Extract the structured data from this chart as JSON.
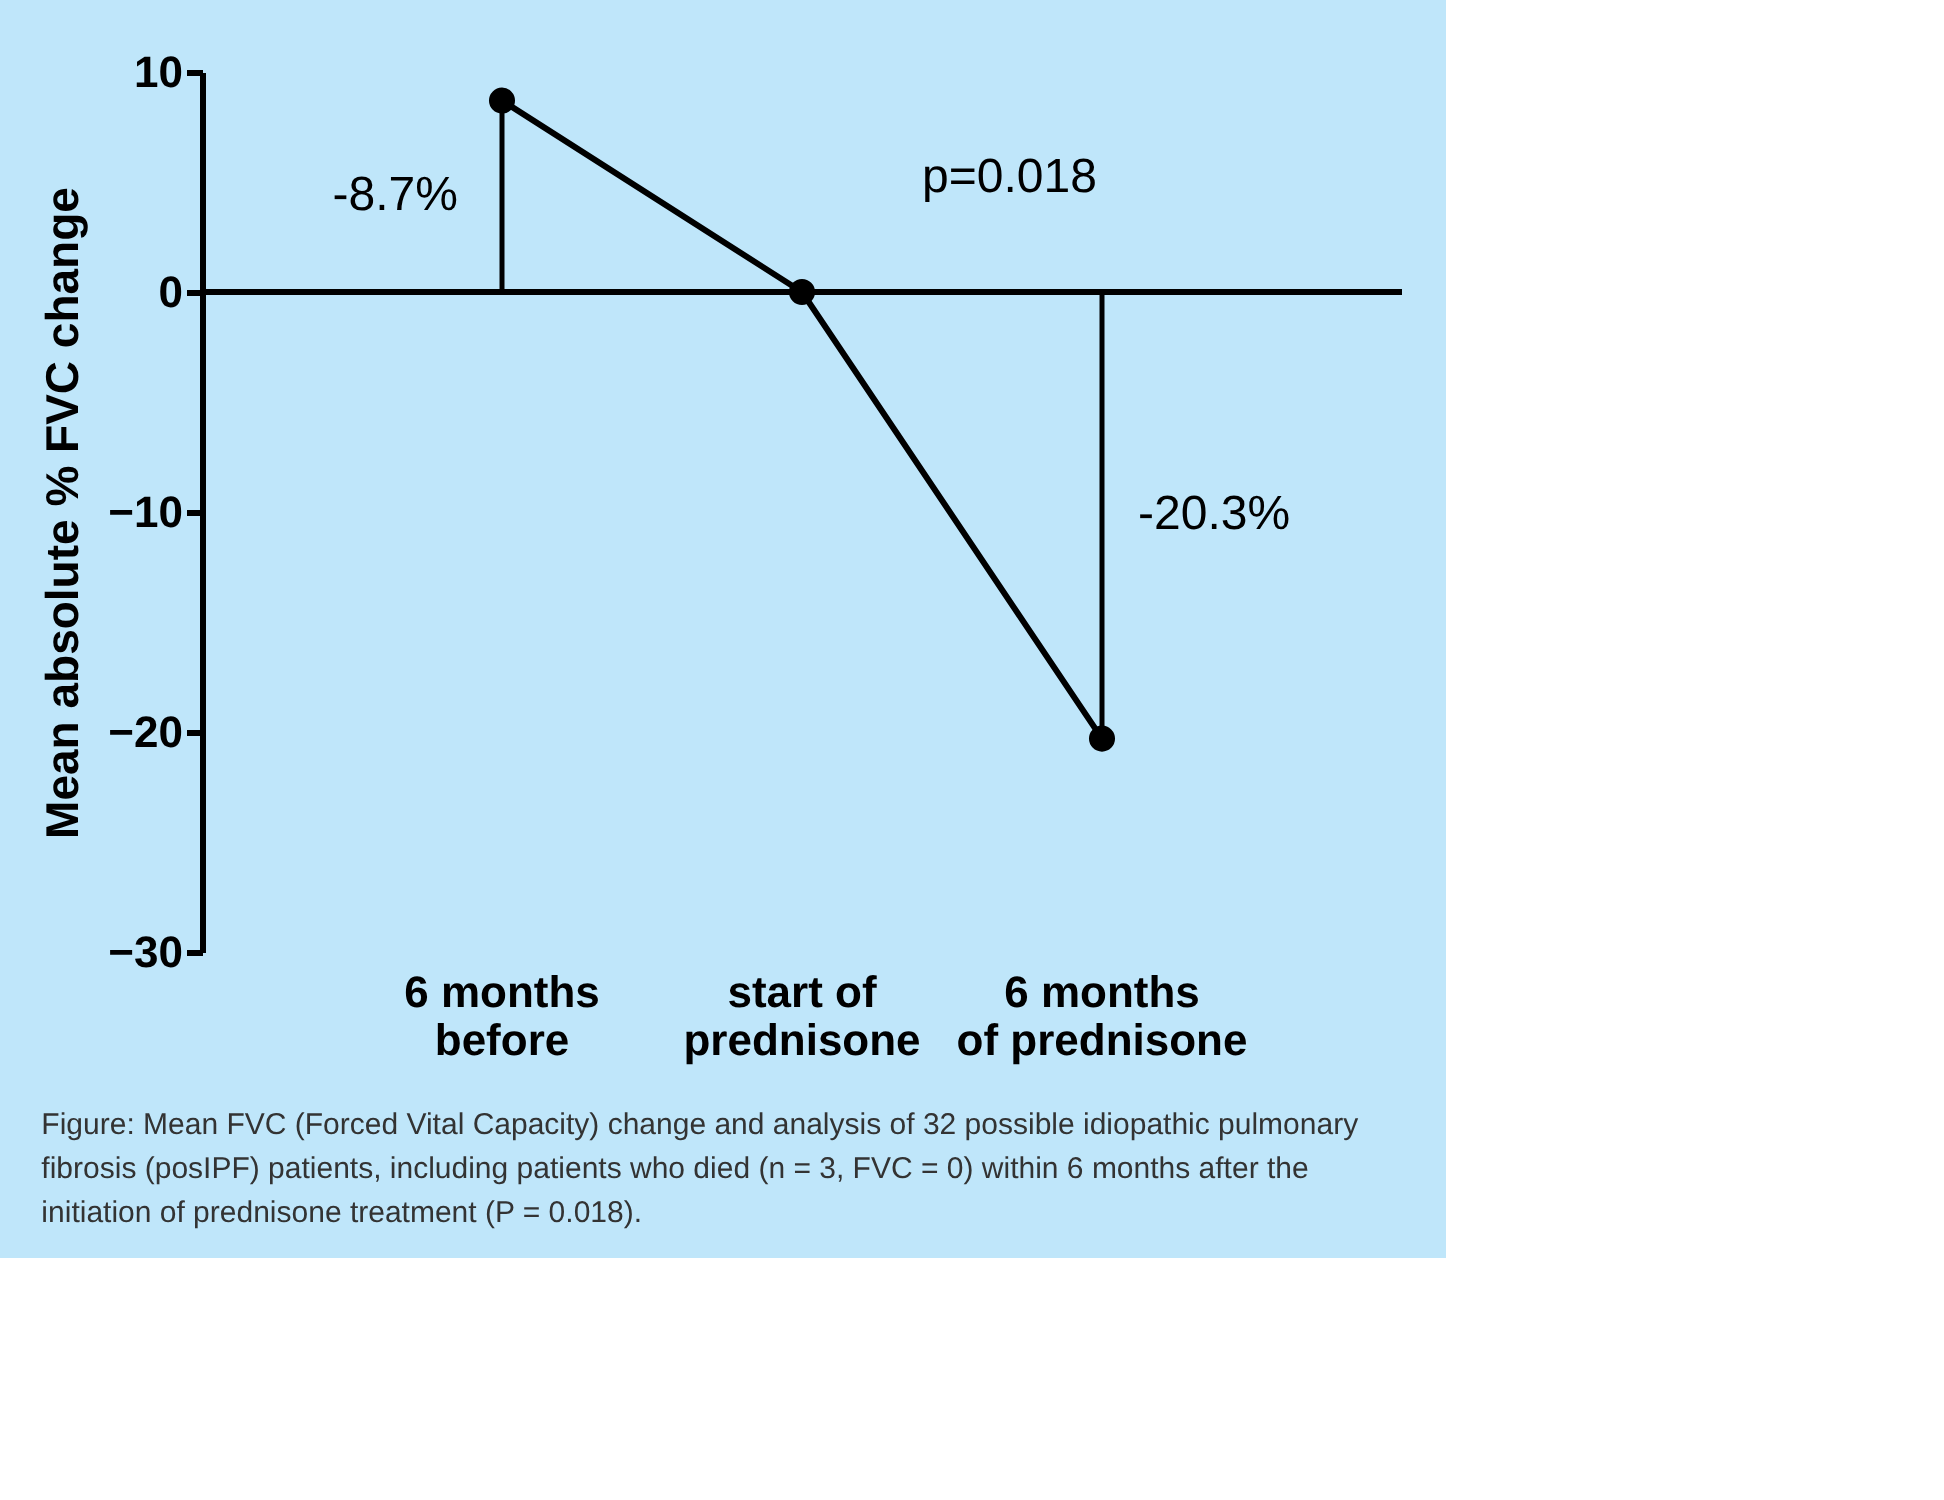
{
  "chart_data": {
    "type": "line",
    "ylabel": "Mean absolute % FVC change",
    "categories": [
      "6 months\nbefore",
      "start of\nprednisone",
      "6 months\nof prednisone"
    ],
    "series": [
      {
        "color": "#000000",
        "values": [
          8.7,
          0,
          -20.3
        ],
        "errors": [
          [
            0,
            8.7
          ],
          null,
          [
            -20.3,
            0
          ]
        ]
      }
    ],
    "ylim": [
      -30,
      10
    ],
    "yticks": [
      -30,
      -20,
      -10,
      0,
      10
    ],
    "grid": false,
    "marker": "circle",
    "line_style": "solid",
    "ref_lines": [
      {
        "axis": "y",
        "value": 0,
        "color": "#000000"
      }
    ],
    "annotations": [
      "-8.7%",
      "-20.3%",
      "p=0.018",
      "Figure: Mean FVC (Forced Vital Capacity) change and analysis of 32 possible idiopathic pulmonary fibrosis (posIPF) patients, including patients who died (n = 3, FVC = 0) within 6 months after the initiation of prednisone treatment (P = 0.018)."
    ]
  }
}
